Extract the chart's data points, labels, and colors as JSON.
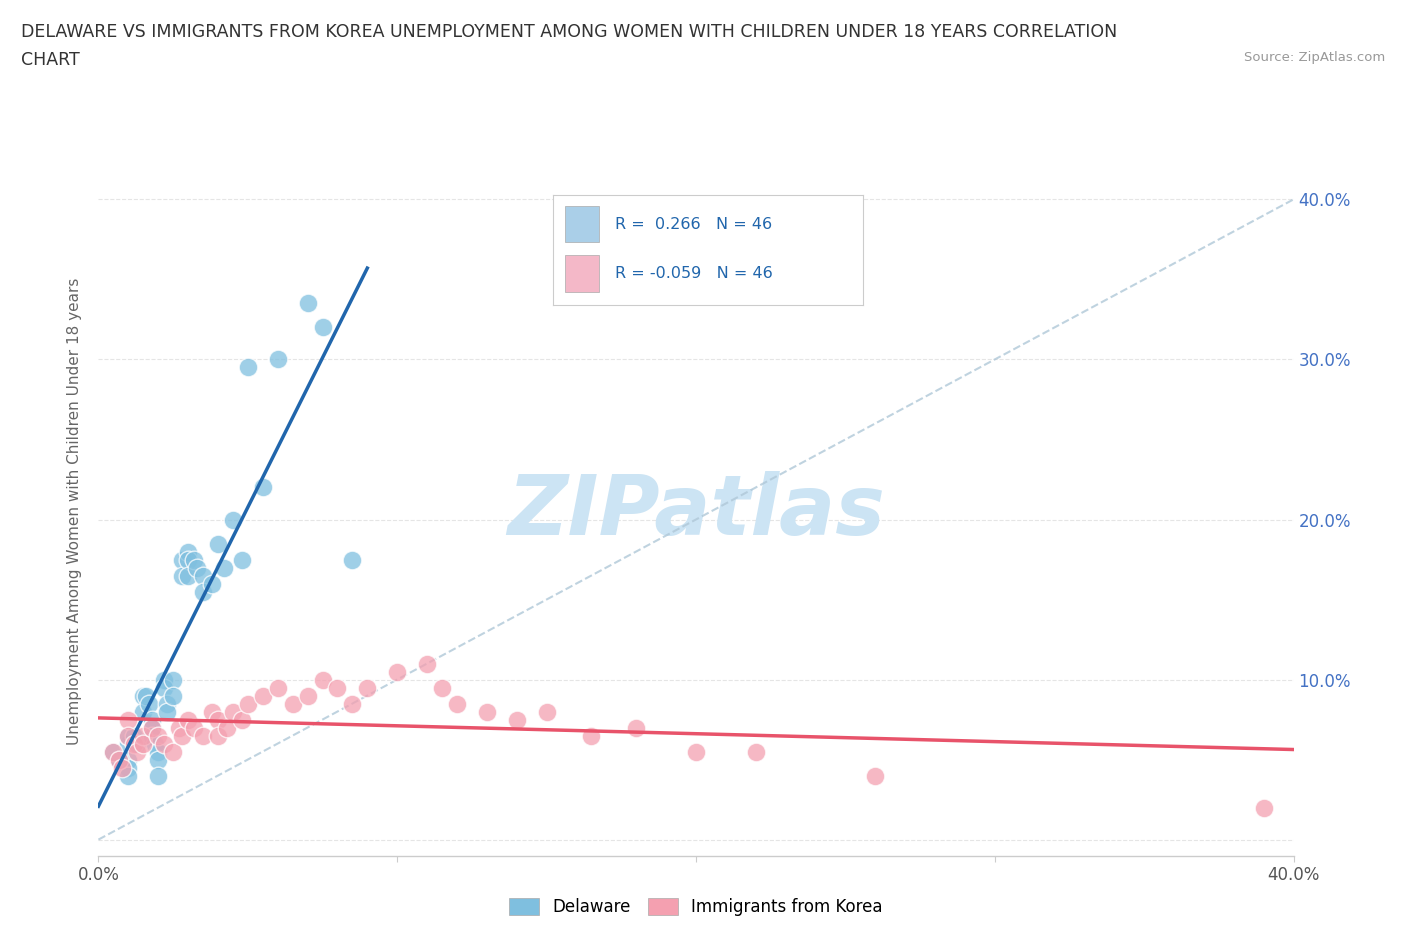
{
  "title_line1": "DELAWARE VS IMMIGRANTS FROM KOREA UNEMPLOYMENT AMONG WOMEN WITH CHILDREN UNDER 18 YEARS CORRELATION",
  "title_line2": "CHART",
  "source_text": "Source: ZipAtlas.com",
  "ylabel": "Unemployment Among Women with Children Under 18 years",
  "legend_R1": "R =  0.266",
  "legend_N1": "N = 46",
  "legend_R2": "R = -0.059",
  "legend_N2": "N = 46",
  "legend_label1": "Delaware",
  "legend_label2": "Immigrants from Korea",
  "ytick_values": [
    0.0,
    0.1,
    0.2,
    0.3,
    0.4
  ],
  "ytick_labels": [
    "",
    "10.0%",
    "20.0%",
    "30.0%",
    "40.0%"
  ],
  "xlim": [
    0.0,
    0.4
  ],
  "ylim": [
    -0.01,
    0.42
  ],
  "delaware_x": [
    0.005,
    0.007,
    0.01,
    0.01,
    0.01,
    0.01,
    0.01,
    0.012,
    0.013,
    0.015,
    0.015,
    0.016,
    0.017,
    0.018,
    0.018,
    0.018,
    0.019,
    0.02,
    0.02,
    0.02,
    0.022,
    0.022,
    0.023,
    0.023,
    0.025,
    0.025,
    0.028,
    0.028,
    0.03,
    0.03,
    0.03,
    0.032,
    0.033,
    0.035,
    0.035,
    0.038,
    0.04,
    0.042,
    0.045,
    0.048,
    0.05,
    0.055,
    0.06,
    0.07,
    0.075,
    0.085
  ],
  "delaware_y": [
    0.055,
    0.05,
    0.06,
    0.065,
    0.05,
    0.045,
    0.04,
    0.065,
    0.06,
    0.09,
    0.08,
    0.09,
    0.085,
    0.075,
    0.07,
    0.065,
    0.06,
    0.055,
    0.05,
    0.04,
    0.1,
    0.095,
    0.085,
    0.08,
    0.1,
    0.09,
    0.175,
    0.165,
    0.18,
    0.175,
    0.165,
    0.175,
    0.17,
    0.165,
    0.155,
    0.16,
    0.185,
    0.17,
    0.2,
    0.175,
    0.295,
    0.22,
    0.3,
    0.335,
    0.32,
    0.175
  ],
  "korea_x": [
    0.005,
    0.007,
    0.008,
    0.01,
    0.01,
    0.012,
    0.013,
    0.015,
    0.015,
    0.018,
    0.02,
    0.022,
    0.025,
    0.027,
    0.028,
    0.03,
    0.032,
    0.035,
    0.038,
    0.04,
    0.04,
    0.043,
    0.045,
    0.048,
    0.05,
    0.055,
    0.06,
    0.065,
    0.07,
    0.075,
    0.08,
    0.085,
    0.09,
    0.1,
    0.11,
    0.115,
    0.12,
    0.13,
    0.14,
    0.15,
    0.165,
    0.18,
    0.2,
    0.22,
    0.26,
    0.39
  ],
  "korea_y": [
    0.055,
    0.05,
    0.045,
    0.075,
    0.065,
    0.06,
    0.055,
    0.065,
    0.06,
    0.07,
    0.065,
    0.06,
    0.055,
    0.07,
    0.065,
    0.075,
    0.07,
    0.065,
    0.08,
    0.075,
    0.065,
    0.07,
    0.08,
    0.075,
    0.085,
    0.09,
    0.095,
    0.085,
    0.09,
    0.1,
    0.095,
    0.085,
    0.095,
    0.105,
    0.11,
    0.095,
    0.085,
    0.08,
    0.075,
    0.08,
    0.065,
    0.07,
    0.055,
    0.055,
    0.04,
    0.02
  ],
  "delaware_color": "#7fbfdf",
  "korea_color": "#f4a0b0",
  "trend_delaware_color": "#2166ac",
  "trend_korea_color": "#e8536a",
  "diag_color": "#b0c8d8",
  "watermark_color": "#cce4f4",
  "background_color": "#ffffff",
  "grid_color": "#e5e5e5",
  "title_color": "#333333",
  "axis_label_color": "#666666",
  "legend_box_color1": "#aacfe8",
  "legend_box_color2": "#f4b8c8",
  "tick_label_color": "#4472c4",
  "source_color": "#999999"
}
